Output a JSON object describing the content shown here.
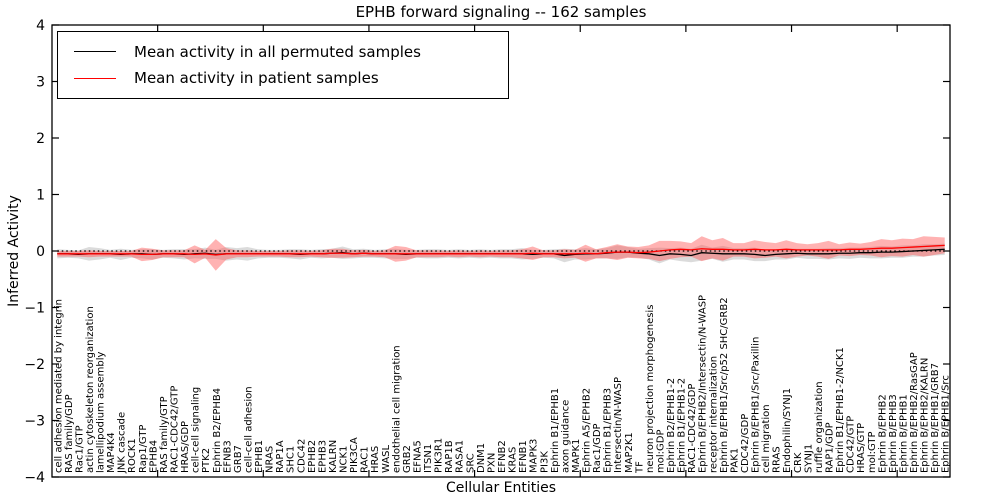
{
  "title": "EPHB forward signaling -- 162 samples",
  "axes": {
    "xlabel": "Cellular Entities",
    "ylabel": "Inferred Activity"
  },
  "legend": {
    "entries": [
      {
        "label": "Mean activity in all permuted samples",
        "color": "#000000"
      },
      {
        "label": "Mean activity in patient samples",
        "color": "#ff0000"
      }
    ],
    "position": "upper left"
  },
  "colors": {
    "permuted_line": "#000000",
    "patient_line": "#ff0000",
    "permuted_band": "#c8c8c8",
    "patient_band": "#ff5555",
    "zero_line": "#000000",
    "frame": "#000000"
  },
  "chart_data": {
    "type": "line",
    "title": "EPHB forward signaling -- 162 samples",
    "xlabel": "Cellular Entities",
    "ylabel": "Inferred Activity",
    "ylim": [
      -4,
      4
    ],
    "yticks": [
      -4,
      -3,
      -2,
      -1,
      0,
      1,
      2,
      3,
      4
    ],
    "xticks_values": [
      10,
      20,
      30,
      40,
      50,
      60,
      70,
      80
    ],
    "grid": false,
    "legend_position": "upper left",
    "zero_reference_line": 0,
    "categories": [
      "cell adhesion mediated by integrin",
      "RAS family/GDP",
      "Rac1/GTP",
      "actin cytoskeleton reorganization",
      "lamellipodium assembly",
      "MAP4K4",
      "JNK cascade",
      "ROCK1",
      "Rap1/GTP",
      "EPHB4",
      "RAS family/GTP",
      "RAC1-CDC42/GTP",
      "HRAS/GDP",
      "cell-cell signaling",
      "PTK2",
      "Ephrin B2/EPHB4",
      "EFNB3",
      "GRB7",
      "cell-cell adhesion",
      "EPHB1",
      "NRAS",
      "RAP1A",
      "SHC1",
      "CDC42",
      "EPHB2",
      "EPHB3",
      "KALRN",
      "NCK1",
      "PIK3CA",
      "RAC1",
      "HRAS",
      "WASL",
      "endothelial cell migration",
      "GRB2",
      "EFNA5",
      "ITSN1",
      "PIK3R1",
      "RAP1B",
      "RASA1",
      "SRC",
      "DNM1",
      "PXN",
      "EFNB2",
      "KRAS",
      "EFNB1",
      "MAPK3",
      "PI3K",
      "Ephrin B1/EPHB1",
      "axon guidance",
      "MAPK1",
      "Ephrin A5/EPHB2",
      "Rac1/GDP",
      "Ephrin B1/EPHB3",
      "Intersectin/N-WASP",
      "MAP2K1",
      "TF",
      "neuron projection morphogenesis",
      "mol:GDP",
      "Ephrin B2/EPHB1-2",
      "Ephrin B1/EPHB1-2",
      "RAC1-CDC42/GDP",
      "Ephrin B/EPHB2/Intersectin/N-WASP",
      "receptor internalization",
      "Ephrin B/EPHB1/Src/p52 SHC/GRB2",
      "PAK1",
      "CDC42/GDP",
      "Ephrin B/EPHB1/Src/Paxillin",
      "cell migration",
      "RRAS",
      "Endophilin/SYNJ1",
      "CRK",
      "SYNJ1",
      "ruffle organization",
      "RAP1/GDP",
      "Ephrin B1/EPHB1-2/NCK1",
      "CDC42/GTP",
      "HRAS/GTP",
      "mol:GTP",
      "Ephrin B/EPHB2",
      "Ephrin B/EPHB3",
      "Ephrin B/EPHB1",
      "Ephrin B/EPHB2/RasGAP",
      "Ephrin B/EPHB2/KALRN",
      "Ephrin B/EPHB1/GRB7",
      "Ephrin B/EPHB1/Src"
    ],
    "series": [
      {
        "name": "Mean activity in all permuted samples",
        "color": "#000000",
        "values": [
          -0.05,
          -0.05,
          -0.06,
          -0.05,
          -0.05,
          -0.05,
          -0.06,
          -0.05,
          -0.05,
          -0.06,
          -0.05,
          -0.05,
          -0.06,
          -0.05,
          -0.04,
          -0.06,
          -0.05,
          -0.05,
          -0.05,
          -0.05,
          -0.05,
          -0.05,
          -0.05,
          -0.06,
          -0.05,
          -0.05,
          -0.04,
          -0.03,
          -0.05,
          -0.04,
          -0.05,
          -0.05,
          -0.05,
          -0.06,
          -0.05,
          -0.05,
          -0.05,
          -0.05,
          -0.05,
          -0.05,
          -0.05,
          -0.05,
          -0.05,
          -0.05,
          -0.05,
          -0.06,
          -0.05,
          -0.05,
          -0.08,
          -0.06,
          -0.05,
          -0.05,
          -0.04,
          -0.02,
          -0.02,
          -0.04,
          -0.05,
          -0.08,
          -0.05,
          -0.06,
          -0.08,
          -0.03,
          -0.04,
          -0.05,
          -0.05,
          -0.05,
          -0.06,
          -0.08,
          -0.06,
          -0.05,
          -0.04,
          -0.05,
          -0.05,
          -0.05,
          -0.04,
          -0.04,
          -0.03,
          -0.03,
          -0.02,
          -0.02,
          -0.01,
          0.0,
          0.01,
          0.02,
          0.03
        ],
        "band_halfwidth": [
          0.08,
          0.07,
          0.07,
          0.12,
          0.1,
          0.07,
          0.1,
          0.07,
          0.08,
          0.09,
          0.07,
          0.08,
          0.09,
          0.08,
          0.1,
          0.08,
          0.12,
          0.1,
          0.12,
          0.08,
          0.07,
          0.07,
          0.08,
          0.09,
          0.07,
          0.08,
          0.08,
          0.11,
          0.08,
          0.08,
          0.07,
          0.08,
          0.09,
          0.08,
          0.07,
          0.08,
          0.08,
          0.07,
          0.08,
          0.07,
          0.08,
          0.07,
          0.08,
          0.08,
          0.1,
          0.08,
          0.07,
          0.08,
          0.12,
          0.09,
          0.1,
          0.08,
          0.09,
          0.12,
          0.09,
          0.08,
          0.1,
          0.14,
          0.1,
          0.12,
          0.12,
          0.14,
          0.1,
          0.14,
          0.1,
          0.1,
          0.12,
          0.1,
          0.09,
          0.1,
          0.08,
          0.09,
          0.09,
          0.1,
          0.09,
          0.1,
          0.09,
          0.1,
          0.11,
          0.1,
          0.11,
          0.1,
          0.11,
          0.1,
          0.1
        ]
      },
      {
        "name": "Mean activity in patient samples",
        "color": "#ff0000",
        "values": [
          -0.05,
          -0.05,
          -0.05,
          -0.05,
          -0.05,
          -0.05,
          -0.05,
          -0.05,
          -0.06,
          -0.06,
          -0.05,
          -0.05,
          -0.05,
          -0.06,
          -0.05,
          -0.07,
          -0.05,
          -0.05,
          -0.05,
          -0.05,
          -0.05,
          -0.05,
          -0.05,
          -0.05,
          -0.05,
          -0.05,
          -0.04,
          -0.04,
          -0.05,
          -0.04,
          -0.05,
          -0.05,
          -0.05,
          -0.05,
          -0.05,
          -0.05,
          -0.05,
          -0.05,
          -0.05,
          -0.05,
          -0.05,
          -0.05,
          -0.05,
          -0.05,
          -0.05,
          -0.04,
          -0.05,
          -0.05,
          -0.05,
          -0.05,
          -0.04,
          -0.05,
          -0.03,
          -0.02,
          -0.02,
          -0.03,
          -0.02,
          0.0,
          0.02,
          0.03,
          0.02,
          0.04,
          0.03,
          0.03,
          0.02,
          0.02,
          0.03,
          0.02,
          0.02,
          0.03,
          0.02,
          0.02,
          0.02,
          0.02,
          0.02,
          0.03,
          0.03,
          0.04,
          0.05,
          0.05,
          0.06,
          0.07,
          0.08,
          0.09,
          0.1
        ],
        "band_halfwidth": [
          0.05,
          0.05,
          0.05,
          0.06,
          0.05,
          0.05,
          0.05,
          0.05,
          0.12,
          0.1,
          0.06,
          0.06,
          0.06,
          0.16,
          0.07,
          0.28,
          0.1,
          0.06,
          0.06,
          0.05,
          0.05,
          0.05,
          0.06,
          0.06,
          0.05,
          0.06,
          0.08,
          0.08,
          0.06,
          0.06,
          0.05,
          0.06,
          0.14,
          0.12,
          0.06,
          0.06,
          0.06,
          0.05,
          0.06,
          0.05,
          0.06,
          0.05,
          0.06,
          0.06,
          0.08,
          0.12,
          0.06,
          0.06,
          0.08,
          0.07,
          0.15,
          0.08,
          0.1,
          0.14,
          0.1,
          0.1,
          0.12,
          0.18,
          0.16,
          0.14,
          0.12,
          0.22,
          0.16,
          0.2,
          0.12,
          0.12,
          0.16,
          0.14,
          0.12,
          0.16,
          0.12,
          0.1,
          0.12,
          0.16,
          0.1,
          0.12,
          0.1,
          0.12,
          0.16,
          0.14,
          0.16,
          0.14,
          0.18,
          0.16,
          0.14
        ]
      }
    ]
  }
}
